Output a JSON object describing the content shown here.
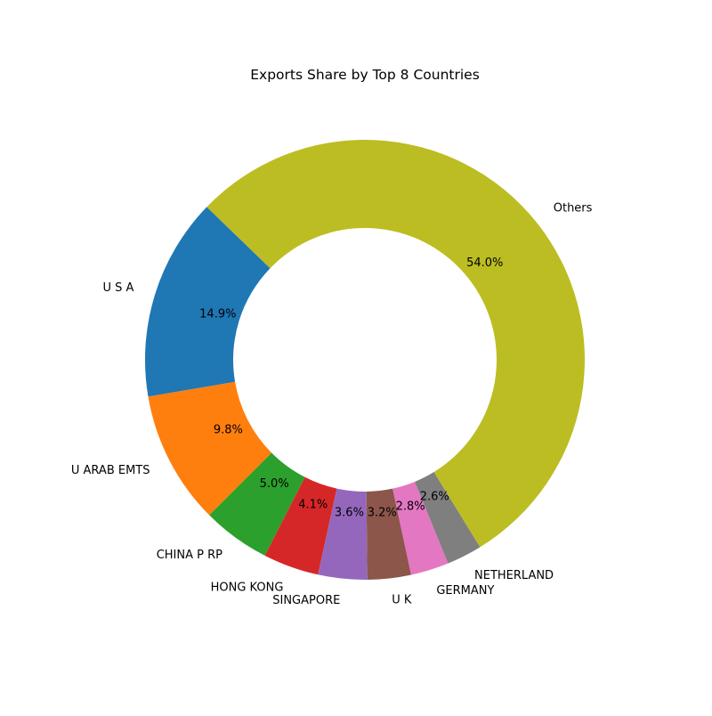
{
  "chart_data": {
    "type": "pie",
    "variant": "donut",
    "title": "Exports Share by Top 8 Countries",
    "categories": [
      "U S A",
      "U ARAB EMTS",
      "CHINA P RP",
      "HONG KONG",
      "SINGAPORE",
      "U K",
      "GERMANY",
      "NETHERLAND",
      "Others"
    ],
    "values": [
      14.9,
      9.8,
      5.0,
      4.1,
      3.6,
      3.2,
      2.8,
      2.6,
      54.0
    ],
    "value_labels": [
      "14.9%",
      "9.8%",
      "5.0%",
      "4.1%",
      "3.6%",
      "3.2%",
      "2.8%",
      "2.6%",
      "54.0%"
    ],
    "colors": [
      "#1f77b4",
      "#ff7f0e",
      "#2ca02c",
      "#d62728",
      "#9467bd",
      "#8c564b",
      "#e377c2",
      "#7f7f7f",
      "#bcbd22"
    ],
    "legend": "none"
  }
}
